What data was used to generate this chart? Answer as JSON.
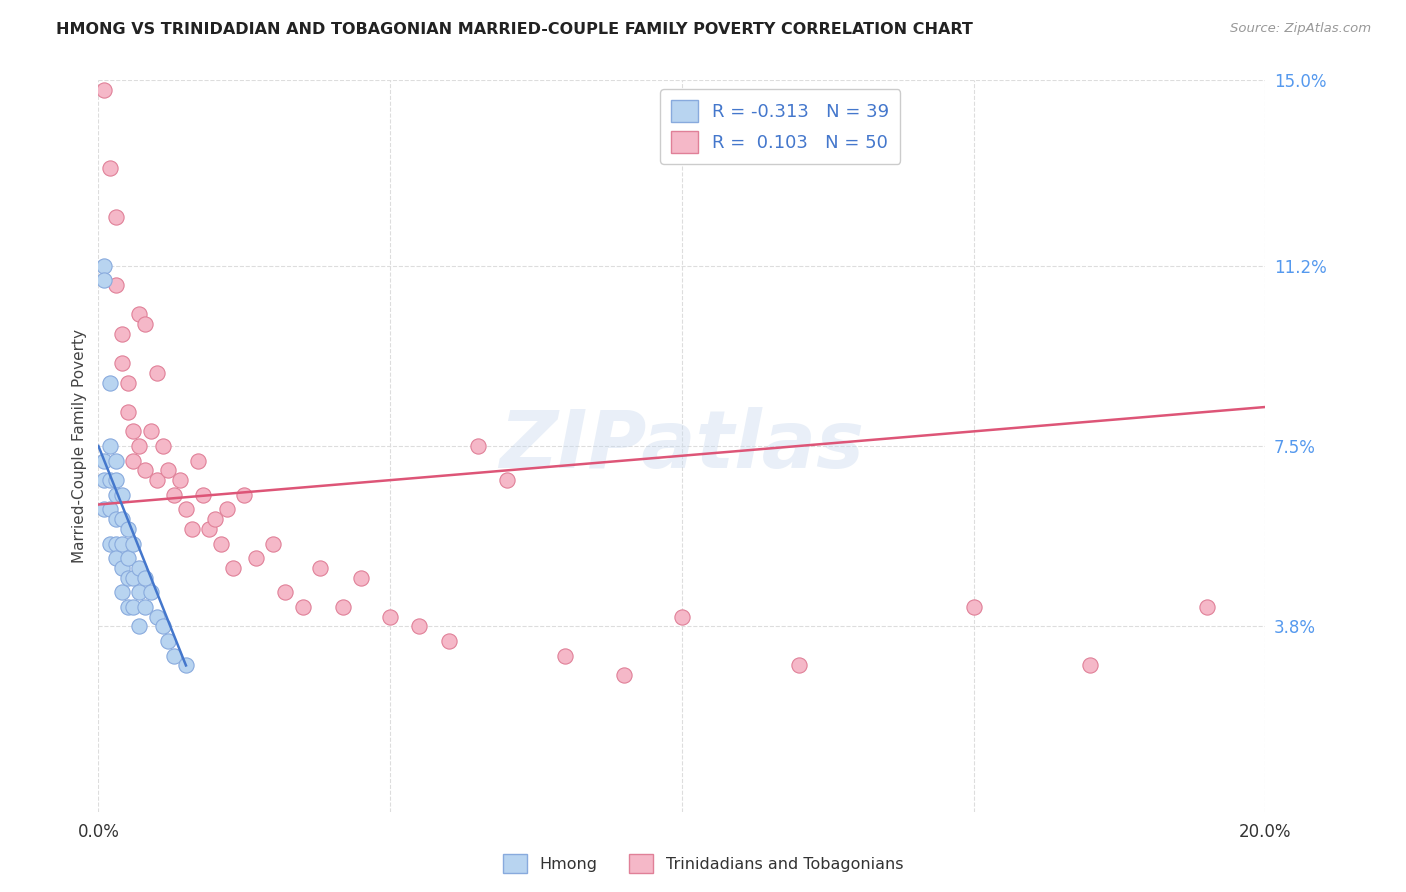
{
  "title": "HMONG VS TRINIDADIAN AND TOBAGONIAN MARRIED-COUPLE FAMILY POVERTY CORRELATION CHART",
  "source": "Source: ZipAtlas.com",
  "ylabel": "Married-Couple Family Poverty",
  "xlim": [
    0.0,
    0.2
  ],
  "ylim": [
    0.0,
    0.15
  ],
  "xticks": [
    0.0,
    0.05,
    0.1,
    0.15,
    0.2
  ],
  "xticklabels": [
    "0.0%",
    "",
    "",
    "",
    "20.0%"
  ],
  "ytick_labels_right": [
    "15.0%",
    "11.2%",
    "7.5%",
    "3.8%"
  ],
  "ytick_vals_right": [
    0.15,
    0.112,
    0.075,
    0.038
  ],
  "watermark": "ZIPatlas",
  "hmong_color": "#b8d4f0",
  "hmong_edge_color": "#88aadd",
  "trini_color": "#f5b8c8",
  "trini_edge_color": "#e08098",
  "hmong_line_color": "#4477cc",
  "trini_line_color": "#dd5577",
  "background_color": "#ffffff",
  "grid_color": "#dddddd",
  "hmong_R": -0.313,
  "hmong_N": 39,
  "trini_R": 0.103,
  "trini_N": 50,
  "hmong_scatter_x": [
    0.001,
    0.001,
    0.001,
    0.001,
    0.001,
    0.002,
    0.002,
    0.002,
    0.002,
    0.002,
    0.003,
    0.003,
    0.003,
    0.003,
    0.003,
    0.003,
    0.004,
    0.004,
    0.004,
    0.004,
    0.004,
    0.005,
    0.005,
    0.005,
    0.005,
    0.006,
    0.006,
    0.006,
    0.007,
    0.007,
    0.007,
    0.008,
    0.008,
    0.009,
    0.01,
    0.011,
    0.012,
    0.013,
    0.015
  ],
  "hmong_scatter_y": [
    0.112,
    0.109,
    0.072,
    0.068,
    0.062,
    0.088,
    0.075,
    0.068,
    0.062,
    0.055,
    0.072,
    0.068,
    0.065,
    0.06,
    0.055,
    0.052,
    0.065,
    0.06,
    0.055,
    0.05,
    0.045,
    0.058,
    0.052,
    0.048,
    0.042,
    0.055,
    0.048,
    0.042,
    0.05,
    0.045,
    0.038,
    0.048,
    0.042,
    0.045,
    0.04,
    0.038,
    0.035,
    0.032,
    0.03
  ],
  "trini_scatter_x": [
    0.001,
    0.002,
    0.003,
    0.003,
    0.004,
    0.004,
    0.005,
    0.005,
    0.006,
    0.006,
    0.007,
    0.007,
    0.008,
    0.008,
    0.009,
    0.01,
    0.01,
    0.011,
    0.012,
    0.013,
    0.014,
    0.015,
    0.016,
    0.017,
    0.018,
    0.019,
    0.02,
    0.021,
    0.022,
    0.023,
    0.025,
    0.027,
    0.03,
    0.032,
    0.035,
    0.038,
    0.042,
    0.045,
    0.05,
    0.055,
    0.06,
    0.065,
    0.07,
    0.08,
    0.09,
    0.1,
    0.12,
    0.15,
    0.17,
    0.19
  ],
  "trini_scatter_y": [
    0.148,
    0.132,
    0.122,
    0.108,
    0.098,
    0.092,
    0.088,
    0.082,
    0.078,
    0.072,
    0.102,
    0.075,
    0.1,
    0.07,
    0.078,
    0.09,
    0.068,
    0.075,
    0.07,
    0.065,
    0.068,
    0.062,
    0.058,
    0.072,
    0.065,
    0.058,
    0.06,
    0.055,
    0.062,
    0.05,
    0.065,
    0.052,
    0.055,
    0.045,
    0.042,
    0.05,
    0.042,
    0.048,
    0.04,
    0.038,
    0.035,
    0.075,
    0.068,
    0.032,
    0.028,
    0.04,
    0.03,
    0.042,
    0.03,
    0.042
  ],
  "trini_line_x0": 0.0,
  "trini_line_y0": 0.063,
  "trini_line_x1": 0.2,
  "trini_line_y1": 0.083,
  "hmong_line_x0": 0.0,
  "hmong_line_y0": 0.075,
  "hmong_line_x1": 0.015,
  "hmong_line_y1": 0.03
}
